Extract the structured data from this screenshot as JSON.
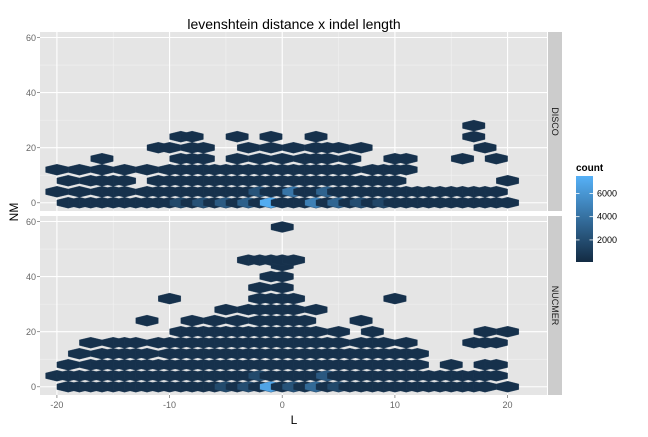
{
  "chart_data": {
    "type": "heatmap",
    "geom": "hexbin",
    "title": "levenshtein distance x indel length",
    "xlabel": "L",
    "ylabel": "NM",
    "xlim": [
      -21.5,
      23.5
    ],
    "ylim": [
      -3,
      62
    ],
    "x_ticks": [
      -20,
      -10,
      0,
      10,
      20
    ],
    "y_ticks": [
      0,
      20,
      40,
      60
    ],
    "grid": true,
    "legend": {
      "title": "count",
      "position": "right",
      "ticks": [
        2000,
        4000,
        6000
      ],
      "range": [
        100,
        7500
      ],
      "low_color": "#132B43",
      "high_color": "#56B1F7"
    },
    "colors": {
      "panel_bg": "#E5E5E5",
      "grid": "#FFFFFF",
      "strip_bg": "#CCCCCC",
      "axis_text": "#666666"
    },
    "hex_size": {
      "dx": 1.0,
      "dy": 2.0
    },
    "facets": [
      {
        "name": "DISCO",
        "rows": [
          {
            "y": 0,
            "x": [
              -19,
              -18,
              -17,
              -16,
              -15,
              -14,
              -13,
              -12,
              -11,
              -10,
              -9,
              -8,
              -7,
              -6,
              -5,
              -4,
              -3,
              -2,
              -1,
              0,
              1,
              2,
              3,
              4,
              5,
              6,
              7,
              8,
              9,
              10,
              11,
              12,
              13,
              14,
              15,
              16,
              17,
              18,
              19,
              20
            ]
          },
          {
            "y": 4,
            "x": [
              -20,
              -18,
              -16,
              -15,
              -14,
              -12,
              -11,
              -10,
              -9,
              -8,
              -7,
              -6,
              -5,
              -4,
              -3,
              -2,
              -1,
              0,
              1,
              2,
              3,
              4,
              5,
              6,
              7,
              8,
              9,
              10,
              11,
              12,
              13,
              14,
              15,
              16,
              17,
              18,
              19
            ]
          },
          {
            "y": 8,
            "x": [
              -19,
              -17,
              -16,
              -15,
              -14,
              -11,
              -10,
              -9,
              -8,
              -7,
              -6,
              -5,
              -4,
              -3,
              -2,
              -1,
              0,
              1,
              2,
              3,
              4,
              5,
              6,
              7,
              8,
              9,
              10,
              20
            ]
          },
          {
            "y": 12,
            "x": [
              -20,
              -18,
              -16,
              -14,
              -12,
              -10,
              -9,
              -8,
              -7,
              -6,
              -5,
              -4,
              -3,
              -2,
              -1,
              0,
              1,
              2,
              3,
              4,
              5,
              6,
              8,
              9,
              10,
              11
            ]
          },
          {
            "y": 16,
            "x": [
              -16,
              -9,
              -8,
              -7,
              -4,
              -2,
              0,
              2,
              3,
              4,
              6,
              10,
              11,
              16,
              19
            ]
          },
          {
            "y": 20,
            "x": [
              -11,
              -10,
              -8,
              -7,
              -3,
              -1,
              1,
              3,
              4,
              5,
              7,
              18
            ]
          },
          {
            "y": 24,
            "x": [
              -9,
              -8,
              -4,
              -1,
              3,
              17
            ]
          },
          {
            "y": 28,
            "x": [
              17
            ]
          }
        ],
        "peaks": [
          {
            "x": -1,
            "y": 0,
            "count": 7200
          },
          {
            "x": 1,
            "y": 4,
            "count": 4200
          },
          {
            "x": 3,
            "y": 0,
            "count": 4800
          },
          {
            "x": 4,
            "y": 4,
            "count": 3200
          },
          {
            "x": 5,
            "y": 0,
            "count": 3300
          },
          {
            "x": -3,
            "y": 0,
            "count": 3000
          },
          {
            "x": -5,
            "y": 0,
            "count": 2700
          },
          {
            "x": -2,
            "y": 4,
            "count": 2300
          },
          {
            "x": -7,
            "y": 0,
            "count": 2200
          },
          {
            "x": -9,
            "y": 0,
            "count": 1700
          },
          {
            "x": 7,
            "y": 0,
            "count": 2000
          },
          {
            "x": 9,
            "y": 0,
            "count": 1600
          }
        ]
      },
      {
        "name": "NUCMER",
        "rows": [
          {
            "y": 0,
            "x": [
              -19,
              -18,
              -17,
              -16,
              -15,
              -14,
              -13,
              -12,
              -11,
              -10,
              -9,
              -8,
              -7,
              -6,
              -5,
              -4,
              -3,
              -2,
              -1,
              0,
              1,
              2,
              3,
              4,
              5,
              6,
              7,
              8,
              9,
              10,
              11,
              12,
              13,
              14,
              15,
              16,
              17,
              18,
              20
            ]
          },
          {
            "y": 4,
            "x": [
              -20,
              -19,
              -18,
              -17,
              -16,
              -15,
              -14,
              -13,
              -12,
              -11,
              -10,
              -9,
              -8,
              -7,
              -6,
              -5,
              -4,
              -3,
              -2,
              -1,
              0,
              1,
              2,
              3,
              4,
              5,
              6,
              7,
              8,
              9,
              10,
              11,
              12,
              13,
              14,
              15,
              16,
              17,
              18,
              19
            ]
          },
          {
            "y": 8,
            "x": [
              -19,
              -17,
              -16,
              -15,
              -14,
              -13,
              -12,
              -11,
              -10,
              -9,
              -8,
              -7,
              -6,
              -5,
              -4,
              -3,
              -2,
              -1,
              0,
              1,
              2,
              3,
              4,
              5,
              6,
              7,
              8,
              9,
              10,
              11,
              12,
              15,
              18,
              19
            ]
          },
          {
            "y": 12,
            "x": [
              -18,
              -16,
              -15,
              -14,
              -13,
              -12,
              -10,
              -9,
              -8,
              -7,
              -6,
              -5,
              -4,
              -3,
              -2,
              -1,
              0,
              1,
              2,
              3,
              4,
              5,
              6,
              7,
              8,
              9,
              10,
              11,
              12
            ]
          },
          {
            "y": 16,
            "x": [
              -17,
              -15,
              -14,
              -13,
              -11,
              -10,
              -9,
              -8,
              -7,
              -6,
              -5,
              -4,
              -3,
              -2,
              -1,
              0,
              1,
              2,
              3,
              4,
              5,
              7,
              8,
              9,
              11,
              17,
              18,
              19
            ]
          },
          {
            "y": 20,
            "x": [
              -9,
              -8,
              -7,
              -6,
              -5,
              -4,
              -3,
              -2,
              -1,
              0,
              1,
              2,
              3,
              5,
              8,
              18,
              20
            ]
          },
          {
            "y": 24,
            "x": [
              -12,
              -8,
              -6,
              -4,
              -2,
              -1,
              0,
              1,
              2,
              7
            ]
          },
          {
            "y": 28,
            "x": [
              -5,
              -3,
              -2,
              -1,
              0,
              1,
              3
            ]
          },
          {
            "y": 32,
            "x": [
              -10,
              -2,
              -1,
              0,
              1,
              10
            ]
          },
          {
            "y": 36,
            "x": [
              -2,
              0
            ]
          },
          {
            "y": 40,
            "x": [
              -1,
              0
            ]
          },
          {
            "y": 44,
            "x": [
              0
            ]
          },
          {
            "y": 46,
            "x": [
              -3,
              -2,
              -1,
              0,
              1
            ]
          },
          {
            "y": 58,
            "x": [
              0
            ]
          }
        ],
        "peaks": [
          {
            "x": -1,
            "y": 0,
            "count": 6800
          },
          {
            "x": 1,
            "y": 0,
            "count": 2300
          },
          {
            "x": 3,
            "y": 0,
            "count": 3500
          },
          {
            "x": 4,
            "y": 4,
            "count": 2600
          },
          {
            "x": -3,
            "y": 0,
            "count": 2000
          },
          {
            "x": -5,
            "y": 0,
            "count": 1800
          },
          {
            "x": -2,
            "y": 4,
            "count": 1800
          },
          {
            "x": 5,
            "y": 0,
            "count": 1700
          }
        ]
      }
    ]
  }
}
